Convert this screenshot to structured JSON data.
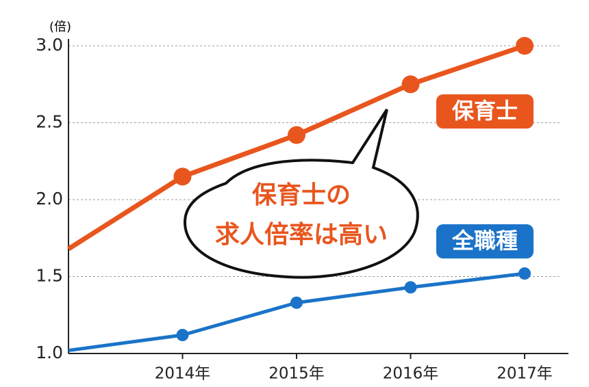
{
  "chart_data": {
    "type": "line",
    "y_unit": "(倍)",
    "categories": [
      null,
      "2014年",
      "2015年",
      "2016年",
      "2017年"
    ],
    "series": [
      {
        "name": "保育士",
        "color": "#e8561e",
        "values": [
          1.68,
          2.15,
          2.42,
          2.75,
          3.0
        ]
      },
      {
        "name": "全職種",
        "color": "#1a73c8",
        "values": [
          1.02,
          1.12,
          1.33,
          1.43,
          1.52
        ]
      }
    ],
    "ylim": [
      1.0,
      3.0
    ],
    "yticks": [
      {
        "value": 1.0,
        "label": "1.0"
      },
      {
        "value": 1.5,
        "label": "1.5"
      },
      {
        "value": 2.0,
        "label": "2.0"
      },
      {
        "value": 2.5,
        "label": "2.5"
      },
      {
        "value": 3.0,
        "label": "3.0"
      }
    ],
    "grid": true,
    "annotation": [
      "保育士の",
      "求人倍率は高い"
    ]
  }
}
